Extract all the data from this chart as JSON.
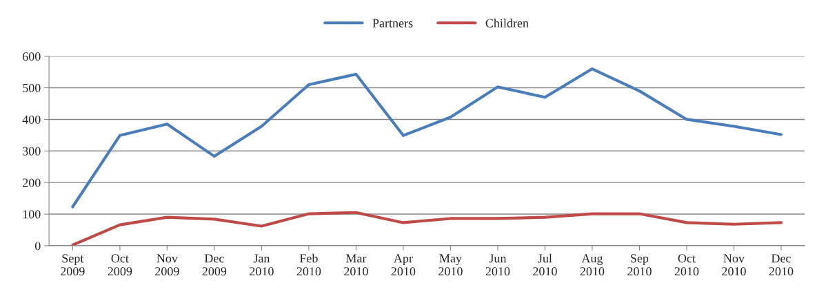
{
  "chart_data": {
    "type": "line",
    "categories": [
      "Sept\n2009",
      "Oct\n2009",
      "Nov\n2009",
      "Dec\n2009",
      "Jan\n2010",
      "Feb\n2010",
      "Mar\n2010",
      "Apr\n2010",
      "May\n2010",
      "Jun\n2010",
      "Jul\n2010",
      "Aug\n2010",
      "Sep\n2010",
      "Oct\n2010",
      "Nov\n2010",
      "Dec\n2010"
    ],
    "series": [
      {
        "name": "Partners",
        "color": "#4a7ebb",
        "values": [
          123,
          349,
          385,
          283,
          378,
          510,
          543,
          349,
          407,
          503,
          470,
          560,
          490,
          400,
          378,
          352
        ]
      },
      {
        "name": "Children",
        "color": "#be4b48",
        "values": [
          2,
          66,
          90,
          84,
          62,
          101,
          105,
          73,
          86,
          86,
          90,
          101,
          101,
          73,
          68,
          73
        ]
      }
    ],
    "ylim": [
      0,
      600
    ],
    "yticks": [
      0,
      100,
      200,
      300,
      400,
      500,
      600
    ],
    "grid": "y",
    "legend": "top",
    "marker": "none",
    "line_style": "solid"
  }
}
